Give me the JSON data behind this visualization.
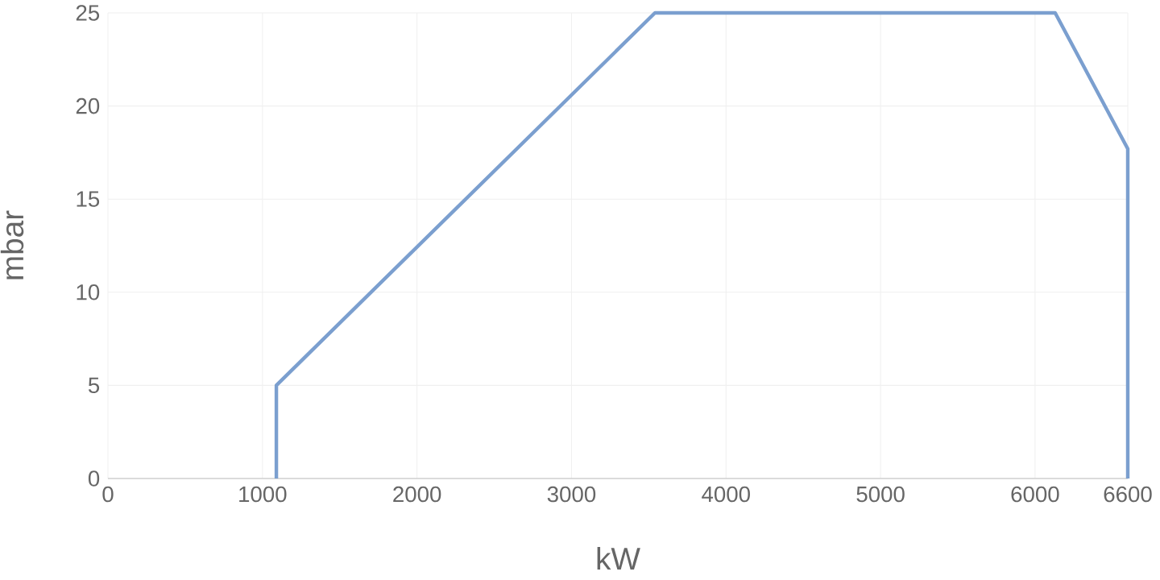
{
  "chart_data": {
    "type": "line",
    "xlabel": "kW",
    "ylabel": "mbar",
    "x": [
      1090,
      1090,
      3540,
      6130,
      6600,
      6600
    ],
    "values": [
      0,
      5,
      25,
      25,
      17.7,
      0
    ],
    "color": "#7b9fcf",
    "xlim": [
      0,
      6600
    ],
    "ylim": [
      0,
      25
    ],
    "xticks": [
      0,
      1000,
      2000,
      3000,
      4000,
      5000,
      6000,
      6600
    ],
    "yticks": [
      0,
      5,
      10,
      15,
      20,
      25
    ],
    "grid": true,
    "marker": "none",
    "line_style": "solid"
  }
}
